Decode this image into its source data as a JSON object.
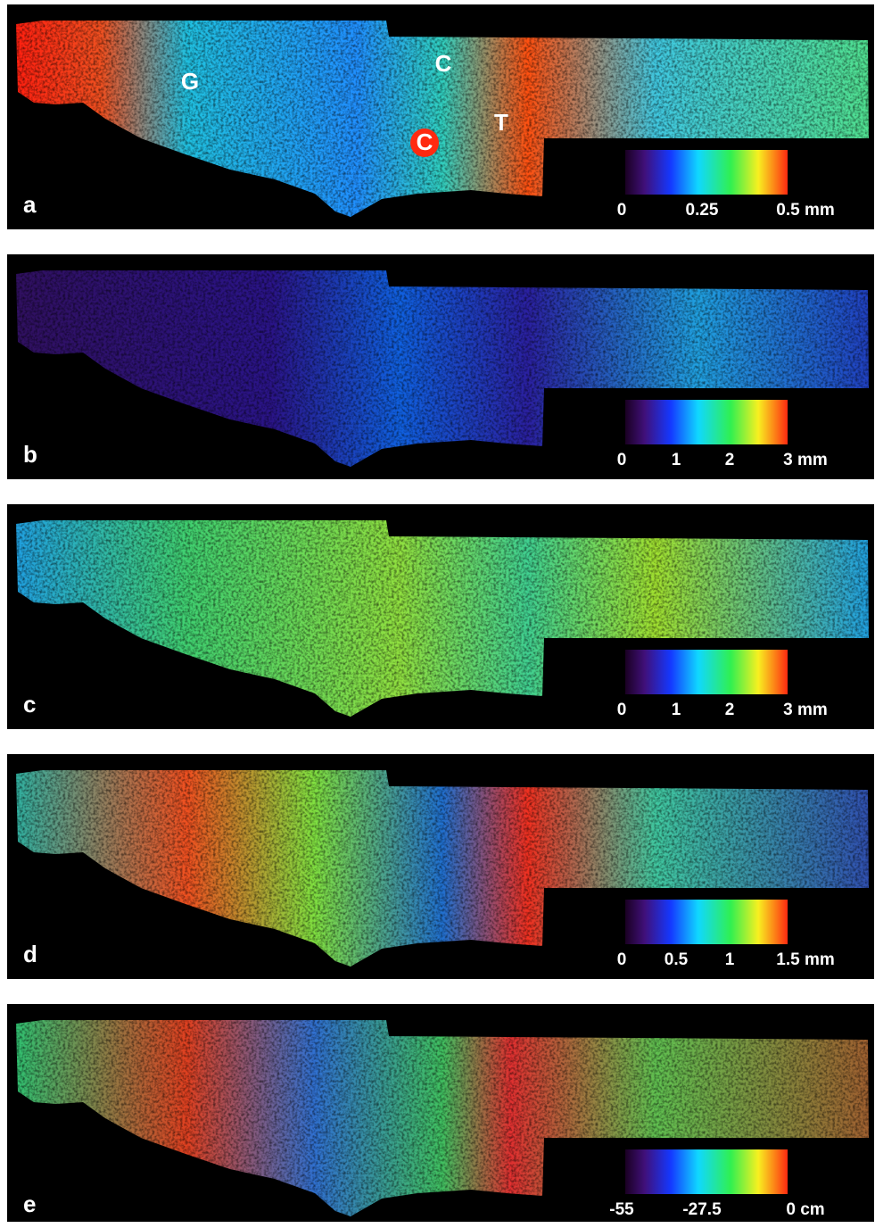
{
  "panels": [
    {
      "label": "a",
      "colorbar_labels": [
        "0",
        "0.25",
        "0.5 mm"
      ],
      "annotations": [
        "G",
        "C",
        "C",
        "T"
      ]
    },
    {
      "label": "b",
      "colorbar_labels": [
        "0",
        "1",
        "2",
        "3 mm"
      ]
    },
    {
      "label": "c",
      "colorbar_labels": [
        "0",
        "1",
        "2",
        "3 mm"
      ]
    },
    {
      "label": "d",
      "colorbar_labels": [
        "0",
        "0.5",
        "1",
        "1.5 mm"
      ]
    },
    {
      "label": "e",
      "colorbar_labels": [
        "-55",
        "-27.5",
        "0 cm"
      ]
    }
  ]
}
